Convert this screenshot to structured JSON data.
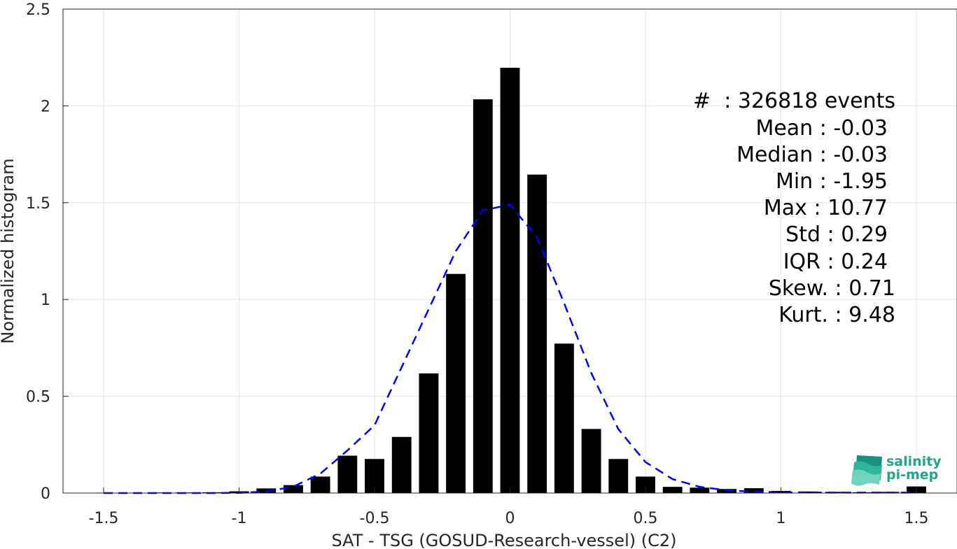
{
  "chart_data": {
    "type": "bar",
    "xlabel": "SAT - TSG (GOSUD-Research-vessel) (C2)",
    "ylabel": "Normalized histogram",
    "xlim": [
      -1.65,
      1.65
    ],
    "ylim": [
      0,
      2.5
    ],
    "xticks": [
      -1.5,
      -1,
      -0.5,
      0,
      0.5,
      1,
      1.5
    ],
    "xtick_labels": [
      "-1.5",
      "-1",
      "-0.5",
      "0",
      "0.5",
      "1",
      "1.5"
    ],
    "yticks": [
      0,
      0.5,
      1,
      1.5,
      2,
      2.5
    ],
    "ytick_labels": [
      "0",
      "0.5",
      "1",
      "1.5",
      "2",
      "2.5"
    ],
    "grid": true,
    "bar_color": "#000000",
    "fit_color": "#0000ff",
    "bars": {
      "x": [
        -1.5,
        -1.4,
        -1.3,
        -1.2,
        -1.1,
        -1.0,
        -0.9,
        -0.8,
        -0.7,
        -0.6,
        -0.5,
        -0.4,
        -0.3,
        -0.2,
        -0.1,
        0.0,
        0.1,
        0.2,
        0.3,
        0.4,
        0.5,
        0.6,
        0.7,
        0.8,
        0.9,
        1.0,
        1.1,
        1.2,
        1.3,
        1.4,
        1.5
      ],
      "values": [
        0.002,
        0.002,
        0.003,
        0.003,
        0.004,
        0.009,
        0.024,
        0.041,
        0.085,
        0.193,
        0.176,
        0.29,
        0.618,
        1.132,
        2.034,
        2.197,
        1.645,
        0.772,
        0.331,
        0.176,
        0.085,
        0.032,
        0.028,
        0.021,
        0.025,
        0.011,
        0.008,
        0.006,
        0.004,
        0.006,
        0.034
      ]
    },
    "fit": {
      "x": [
        -1.5,
        -1.4,
        -1.3,
        -1.2,
        -1.1,
        -1.0,
        -0.9,
        -0.8,
        -0.7,
        -0.6,
        -0.5,
        -0.4,
        -0.3,
        -0.2,
        -0.1,
        0.0,
        0.1,
        0.2,
        0.3,
        0.4,
        0.5,
        0.6,
        0.7,
        0.8,
        0.9,
        1.0,
        1.1,
        1.2,
        1.3,
        1.4,
        1.5
      ],
      "values": [
        0.0,
        0.0,
        0.0,
        0.0,
        0.0,
        0.001,
        0.008,
        0.033,
        0.1,
        0.22,
        0.35,
        0.65,
        0.95,
        1.25,
        1.46,
        1.49,
        1.32,
        0.98,
        0.62,
        0.33,
        0.16,
        0.072,
        0.032,
        0.014,
        0.007,
        0.004,
        0.003,
        0.002,
        0.002,
        0.002,
        0.002
      ]
    }
  },
  "stats": {
    "count": "#  : 326818 events",
    "mean": "Mean : -0.03",
    "median": "Median : -0.03",
    "min": "Min : -1.95",
    "max": "Max : 10.77",
    "std": "Std : 0.29",
    "iqr": "IQR : 0.24",
    "skew": "Skew. : 0.71",
    "kurt": "Kurt. : 9.48"
  },
  "logo": {
    "line1": "salinity",
    "line2": "pi-mep",
    "color": "#1fa58b"
  }
}
